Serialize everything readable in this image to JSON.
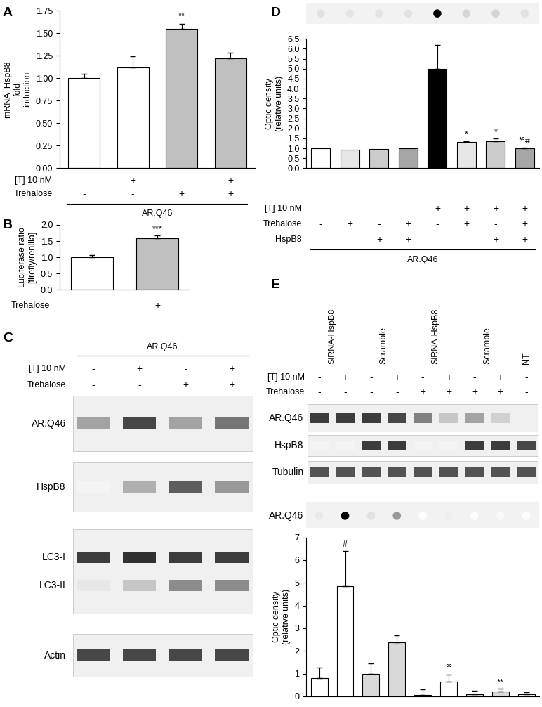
{
  "chart_data": [
    {
      "type": "bar",
      "panel": "A",
      "ylabel": "mRNA  HspB8\nfold\ninduction",
      "categories": [
        null,
        null,
        null,
        null
      ],
      "values": [
        1.0,
        1.12,
        1.55,
        1.22
      ],
      "errors": [
        0.05,
        0.12,
        0.05,
        0.06
      ],
      "colors": [
        "#ffffff",
        "#ffffff",
        "#c0c0c0",
        "#c0c0c0"
      ],
      "annotations": [
        null,
        null,
        "°°",
        null
      ],
      "ylim": [
        0,
        1.75
      ],
      "yticks": [
        {
          "value": 0,
          "label": "0.00"
        },
        {
          "value": 0.25,
          "label": "0.25"
        },
        {
          "value": 0.5,
          "label": "0.50"
        },
        {
          "value": 0.75,
          "label": "0.75"
        },
        {
          "value": 1,
          "label": "1.00"
        },
        {
          "value": 1.25,
          "label": "1.25"
        },
        {
          "value": 1.5,
          "label": "1.50"
        },
        {
          "value": 1.75,
          "label": "1.75"
        }
      ],
      "grid": false,
      "conditions": [
        {
          "label": "[T] 10 nM",
          "values": [
            "-",
            "+",
            "-",
            "+"
          ]
        },
        {
          "label": "Trehalose",
          "values": [
            "-",
            "-",
            "+",
            "+"
          ]
        }
      ],
      "group_label": "AR.Q46"
    },
    {
      "type": "bar",
      "panel": "B",
      "ylabel": "Luciferase ratio\n[firefly/renilla]",
      "categories": [
        null,
        null
      ],
      "values": [
        1.0,
        1.58
      ],
      "errors": [
        0.07,
        0.1
      ],
      "colors": [
        "#ffffff",
        "#c0c0c0"
      ],
      "annotations": [
        null,
        "***"
      ],
      "ylim": [
        0,
        2.0
      ],
      "yticks": [
        {
          "value": 0,
          "label": "0.0"
        },
        {
          "value": 0.5,
          "label": "0.5"
        },
        {
          "value": 1,
          "label": "1.0"
        },
        {
          "value": 1.5,
          "label": "1.5"
        },
        {
          "value": 2,
          "label": "2.0"
        }
      ],
      "grid": false,
      "conditions": [
        {
          "label": "Trehalose",
          "values": [
            "-",
            "+"
          ]
        }
      ]
    },
    {
      "type": "bar",
      "panel": "D",
      "ylabel": "Optic density\n(relative units)",
      "categories": [
        null,
        null,
        null,
        null,
        null,
        null,
        null,
        null
      ],
      "values": [
        1.0,
        0.93,
        0.97,
        1.0,
        5.0,
        1.32,
        1.35,
        1.0
      ],
      "errors": [
        null,
        null,
        null,
        null,
        1.2,
        0.05,
        0.15,
        0.05
      ],
      "colors": [
        "#ffffff",
        "#e6e6e6",
        "#cccccc",
        "#a6a6a6",
        "#000000",
        "#e6e6e6",
        "#cccccc",
        "#a6a6a6"
      ],
      "annotations": [
        null,
        null,
        null,
        null,
        null,
        "*",
        "*",
        "*°#"
      ],
      "ylim": [
        0,
        6.5
      ],
      "yticks": [
        {
          "value": 0,
          "label": "0.0"
        },
        {
          "value": 0.5,
          "label": "0.5"
        },
        {
          "value": 1,
          "label": "1.0"
        },
        {
          "value": 1.5,
          "label": "1.5"
        },
        {
          "value": 2,
          "label": "2.0"
        },
        {
          "value": 2.5,
          "label": "2.5"
        },
        {
          "value": 3,
          "label": "3.0"
        },
        {
          "value": 3.5,
          "label": "3.5"
        },
        {
          "value": 4,
          "label": "4.0"
        },
        {
          "value": 4.5,
          "label": "4.5"
        },
        {
          "value": 5,
          "label": "5.0"
        },
        {
          "value": 5.5,
          "label": "5.5"
        },
        {
          "value": 6,
          "label": "6.0"
        },
        {
          "value": 6.5,
          "label": "6.5"
        }
      ],
      "grid": false,
      "conditions": [
        {
          "label": "[T] 10 nM",
          "values": [
            "-",
            "-",
            "-",
            "-",
            "+",
            "+",
            "+",
            "+"
          ]
        },
        {
          "label": "Trehalose",
          "values": [
            "-",
            "+",
            "-",
            "+",
            "-",
            "+",
            "-",
            "+"
          ]
        },
        {
          "label": "HspB8",
          "values": [
            "-",
            "-",
            "+",
            "+",
            "-",
            "-",
            "+",
            "+"
          ]
        }
      ],
      "group_label": "AR.Q46"
    },
    {
      "type": "bar",
      "ylabel": "Optic density\n(relative units)",
      "categories": [
        null,
        null,
        null,
        null,
        null,
        null,
        null,
        null,
        null
      ],
      "values": [
        0.8,
        4.85,
        1.0,
        2.38,
        0.05,
        0.65,
        0.1,
        0.22,
        0.1
      ],
      "errors": [
        0.45,
        1.55,
        0.45,
        0.3,
        0.25,
        0.3,
        0.15,
        0.12,
        0.08
      ],
      "colors": [
        "#ffffff",
        "#ffffff",
        "#d9d9d9",
        "#d9d9d9",
        "#ffffff",
        "#ffffff",
        "#d9d9d9",
        "#d9d9d9",
        "#ffffff"
      ],
      "annotations": [
        null,
        "#",
        null,
        null,
        null,
        "°°",
        null,
        "**",
        null
      ],
      "ylim": [
        0,
        7
      ],
      "yticks": [
        0,
        1,
        2,
        3,
        4,
        5,
        6,
        7
      ],
      "grid": false
    }
  ],
  "blots": [
    {
      "panel": "C",
      "group_label": "AR.Q46",
      "conditions": [
        {
          "label": "[T] 10 nM",
          "values": [
            "-",
            "+",
            "-",
            "+"
          ]
        },
        {
          "label": "Trehalose",
          "values": [
            "-",
            "-",
            "+",
            "+"
          ]
        }
      ],
      "rows": [
        {
          "labels": [
            "AR.Q46"
          ]
        },
        {
          "labels": [
            "HspB8"
          ]
        },
        {
          "labels": [
            "LC3-I",
            "LC3-II"
          ]
        },
        {
          "labels": [
            "Actin"
          ]
        }
      ]
    },
    {
      "panel": "E",
      "lane_groups": [
        {
          "label": "SiRNA-HspB8",
          "lanes": 2
        },
        {
          "label": "Scramble",
          "lanes": 2
        },
        {
          "label": "SiRNA-HspB8",
          "lanes": 2
        },
        {
          "label": "Scramble",
          "lanes": 2
        },
        {
          "label": "NT",
          "lanes": 1
        }
      ],
      "conditions": [
        {
          "label": "[T] 10 nM",
          "values": [
            "-",
            "+",
            "-",
            "+",
            "-",
            "+",
            "-",
            "+",
            "-"
          ]
        },
        {
          "label": "Trehalose",
          "values": [
            "-",
            "-",
            "-",
            "-",
            "+",
            "+",
            "+",
            "+",
            "-"
          ]
        }
      ],
      "rows": [
        {
          "labels": [
            "AR.Q46"
          ]
        },
        {
          "labels": [
            "HspB8"
          ]
        },
        {
          "labels": [
            "Tubulin"
          ]
        }
      ],
      "dot_blot_label": "AR.Q46"
    }
  ]
}
